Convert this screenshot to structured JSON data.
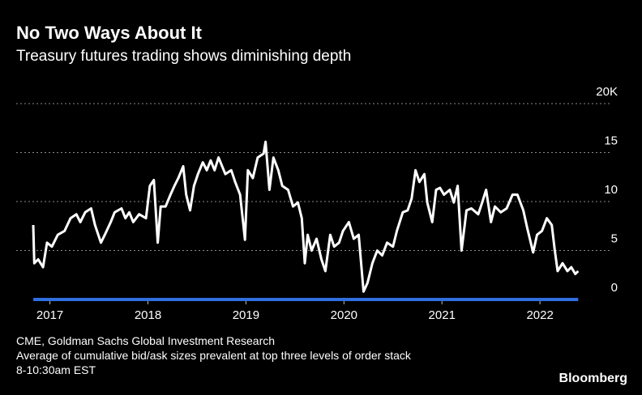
{
  "chart_data": {
    "type": "line",
    "title": "No Two Ways About It",
    "subtitle": "Treasury futures trading shows diminishing depth",
    "source": "CME, Goldman Sachs Global Investment Research",
    "notes": [
      "Average of cumulative bid/ask sizes prevalent at top three levels of order stack",
      "8-10:30am EST"
    ],
    "brand": "Bloomberg",
    "color": "#ffffff",
    "axis_color": "#2f6fe0",
    "grid": true,
    "xlim": [
      2016.78,
      2022.71
    ],
    "xticks": [
      2017,
      2018,
      2019,
      2020,
      2021,
      2022
    ],
    "ylim": [
      0,
      20
    ],
    "yticks": [
      0,
      5,
      10,
      15,
      {
        "value": 20,
        "label": "20K"
      }
    ],
    "x": [
      2016.83,
      2016.84,
      2016.88,
      2016.93,
      2016.97,
      2017.02,
      2017.08,
      2017.15,
      2017.21,
      2017.27,
      2017.31,
      2017.36,
      2017.42,
      2017.46,
      2017.52,
      2017.56,
      2017.62,
      2017.66,
      2017.73,
      2017.77,
      2017.81,
      2017.85,
      2017.91,
      2017.98,
      2018.02,
      2018.06,
      2018.1,
      2018.13,
      2018.18,
      2018.23,
      2018.27,
      2018.31,
      2018.36,
      2018.39,
      2018.43,
      2018.47,
      2018.51,
      2018.56,
      2018.6,
      2018.64,
      2018.68,
      2018.72,
      2018.79,
      2018.85,
      2018.89,
      2018.94,
      2018.99,
      2019.02,
      2019.07,
      2019.12,
      2019.18,
      2019.2,
      2019.24,
      2019.28,
      2019.33,
      2019.37,
      2019.43,
      2019.48,
      2019.53,
      2019.57,
      2019.6,
      2019.63,
      2019.67,
      2019.72,
      2019.77,
      2019.81,
      2019.86,
      2019.9,
      2019.95,
      2019.99,
      2020.05,
      2020.1,
      2020.15,
      2020.2,
      2020.24,
      2020.29,
      2020.34,
      2020.39,
      2020.44,
      2020.5,
      2020.54,
      2020.6,
      2020.65,
      2020.69,
      2020.73,
      2020.77,
      2020.82,
      2020.85,
      2020.9,
      2020.94,
      2020.98,
      2021.02,
      2021.08,
      2021.12,
      2021.16,
      2021.2,
      2021.25,
      2021.3,
      2021.37,
      2021.41,
      2021.45,
      2021.5,
      2021.54,
      2021.6,
      2021.66,
      2021.72,
      2021.77,
      2021.83,
      2021.87,
      2021.93,
      2021.97,
      2022.02,
      2022.07,
      2022.12,
      2022.15,
      2022.18,
      2022.23,
      2022.28,
      2022.32,
      2022.36,
      2022.39
    ],
    "values": [
      7.6,
      3.7,
      4.1,
      3.3,
      5.8,
      5.4,
      6.6,
      7.0,
      8.3,
      8.7,
      7.9,
      8.9,
      9.3,
      7.6,
      5.8,
      6.6,
      7.9,
      8.9,
      9.3,
      8.3,
      8.9,
      7.9,
      8.7,
      8.3,
      11.6,
      12.2,
      5.8,
      9.5,
      9.5,
      10.7,
      11.6,
      12.4,
      13.6,
      10.7,
      9.1,
      11.6,
      12.8,
      14.0,
      13.2,
      14.2,
      13.2,
      14.5,
      12.8,
      13.2,
      12.0,
      10.7,
      6.1,
      13.2,
      12.4,
      14.5,
      14.9,
      16.1,
      11.2,
      14.5,
      13.2,
      11.6,
      11.2,
      9.5,
      9.9,
      8.3,
      3.7,
      6.6,
      5.0,
      6.2,
      4.1,
      2.9,
      6.6,
      5.4,
      5.8,
      7.0,
      7.9,
      6.2,
      6.6,
      0.8,
      1.7,
      3.7,
      5.0,
      4.5,
      5.8,
      5.4,
      7.0,
      8.9,
      9.1,
      10.3,
      13.2,
      12.0,
      12.8,
      9.9,
      7.9,
      11.2,
      11.4,
      10.7,
      11.2,
      9.9,
      11.6,
      5.0,
      9.1,
      9.3,
      8.7,
      9.9,
      11.2,
      7.9,
      9.5,
      8.9,
      9.3,
      10.7,
      10.7,
      9.1,
      7.3,
      4.8,
      6.6,
      7.0,
      8.3,
      7.6,
      5.1,
      2.9,
      3.7,
      2.9,
      3.3,
      2.6,
      2.9
    ]
  }
}
